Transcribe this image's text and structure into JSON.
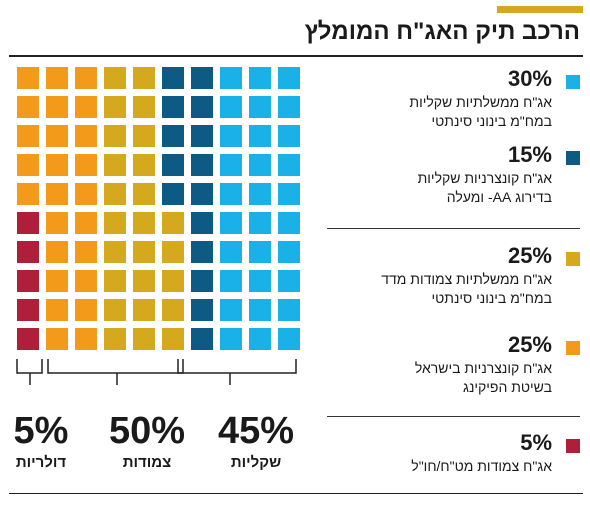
{
  "title": "הרכב תיק האג\"ח המומלץ",
  "chart_data": {
    "type": "waffle",
    "title": "הרכב תיק האג\"ח המומלץ",
    "grid": {
      "rows": 10,
      "cols": 10
    },
    "series": [
      {
        "key": "gov-cpi",
        "pct_label": "30%",
        "value": 30,
        "color": "#1ab0e8",
        "desc": [
          "אג\"ח ממשלתיות שקליות",
          "במח\"מ בינוני סינתטי"
        ]
      },
      {
        "key": "corp-cpi",
        "pct_label": "15%",
        "value": 15,
        "color": "#0d5a85",
        "desc": [
          "אג\"ח קונצרניות שקליות",
          "בדירוג AA- ומעלה"
        ]
      },
      {
        "key": "gov-idx",
        "pct_label": "25%",
        "value": 25,
        "color": "#d4a91d",
        "desc": [
          "אג\"ח ממשלתיות צמודות מדד",
          "במח\"מ בינוני סינתטי"
        ]
      },
      {
        "key": "corp-idx",
        "pct_label": "25%",
        "value": 25,
        "color": "#f49a1a",
        "desc": [
          "אג\"ח קונצרניות בישראל",
          "בשיטת הפיקינג"
        ]
      },
      {
        "key": "foreign",
        "pct_label": "5%",
        "value": 5,
        "color": "#b01f3a",
        "desc": [
          "אג\"ח צמודות מט\"ח/חו\"ל"
        ]
      }
    ],
    "groups": [
      {
        "key": "dollar",
        "pct": "5%",
        "label": "דולריות"
      },
      {
        "key": "linked",
        "pct": "50%",
        "label": "צמודות"
      },
      {
        "key": "shekel",
        "pct": "45%",
        "label": "שקליות"
      }
    ]
  }
}
